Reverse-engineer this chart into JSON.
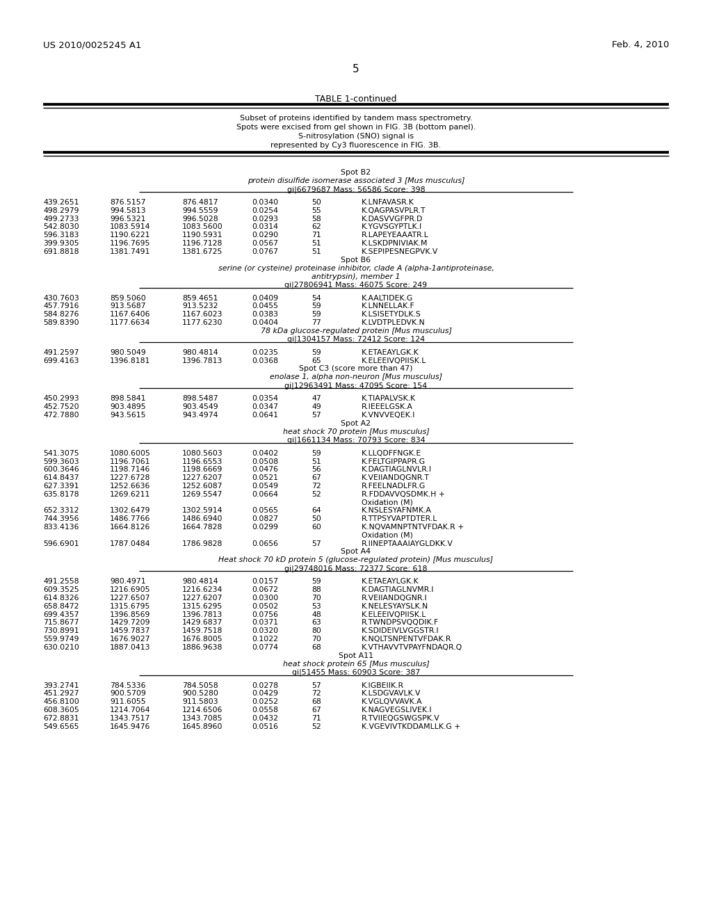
{
  "header_left": "US 2010/0025245 A1",
  "header_right": "Feb. 4, 2010",
  "page_number": "5",
  "table_title": "TABLE 1-continued",
  "description_lines": [
    "Subset of proteins identified by tandem mass spectrometry.",
    "Spots were excised from gel shown in FIG. 3B (bottom panel).",
    "S-nitrosylation (SNO) signal is",
    "represented by Cy3 fluorescence in FIG. 3B."
  ],
  "content": [
    {
      "type": "blank"
    },
    {
      "type": "spot_header",
      "text": "Spot B2"
    },
    {
      "type": "protein_name",
      "text": "protein disulfide isomerase associated 3 [Mus musculus]"
    },
    {
      "type": "gi_line",
      "text": "gi|6679687 Mass: 56586 Score: 398"
    },
    {
      "type": "blank_small"
    },
    {
      "type": "data_row",
      "cols": [
        "439.2651",
        "876.5157",
        "876.4817",
        "0.0340",
        "50",
        "K.LNFAVASR.K"
      ]
    },
    {
      "type": "data_row",
      "cols": [
        "498.2979",
        "994.5813",
        "994.5559",
        "0.0254",
        "55",
        "K.QAGPASVPLR.T"
      ]
    },
    {
      "type": "data_row",
      "cols": [
        "499.2733",
        "996.5321",
        "996.5028",
        "0.0293",
        "58",
        "K.DASVVGFPR.D"
      ]
    },
    {
      "type": "data_row",
      "cols": [
        "542.8030",
        "1083.5914",
        "1083.5600",
        "0.0314",
        "62",
        "K.YGVSGYPTLK.I"
      ]
    },
    {
      "type": "data_row",
      "cols": [
        "596.3183",
        "1190.6221",
        "1190.5931",
        "0.0290",
        "71",
        "R.LAPEYEAAATR.L"
      ]
    },
    {
      "type": "data_row",
      "cols": [
        "399.9305",
        "1196.7695",
        "1196.7128",
        "0.0567",
        "51",
        "K.LSKDPNIVIAK.M"
      ]
    },
    {
      "type": "data_row",
      "cols": [
        "691.8818",
        "1381.7491",
        "1381.6725",
        "0.0767",
        "51",
        "K.SEPIPESNEGPVK.V"
      ]
    },
    {
      "type": "spot_header",
      "text": "Spot B6"
    },
    {
      "type": "protein_name",
      "text": "serine (or cysteine) proteinase inhibitor, clade A (alpha-1antiproteinase,"
    },
    {
      "type": "protein_name",
      "text": "antitrypsin), member 1"
    },
    {
      "type": "gi_line",
      "text": "gi|27806941 Mass: 46075 Score: 249"
    },
    {
      "type": "blank_small"
    },
    {
      "type": "data_row",
      "cols": [
        "430.7603",
        "859.5060",
        "859.4651",
        "0.0409",
        "54",
        "K.AALTIDEK.G"
      ]
    },
    {
      "type": "data_row",
      "cols": [
        "457.7916",
        "913.5687",
        "913.5232",
        "0.0455",
        "59",
        "K.LNNELLAK.F"
      ]
    },
    {
      "type": "data_row",
      "cols": [
        "584.8276",
        "1167.6406",
        "1167.6023",
        "0.0383",
        "59",
        "K.LSISETYDLK.S"
      ]
    },
    {
      "type": "data_row",
      "cols": [
        "589.8390",
        "1177.6634",
        "1177.6230",
        "0.0404",
        "77",
        "K.LVDTPLEDVK.N"
      ]
    },
    {
      "type": "protein_name",
      "text": "78 kDa glucose-regulated protein [Mus musculus]"
    },
    {
      "type": "gi_line",
      "text": "gi|1304157 Mass: 72412 Score: 124"
    },
    {
      "type": "blank_small"
    },
    {
      "type": "data_row",
      "cols": [
        "491.2597",
        "980.5049",
        "980.4814",
        "0.0235",
        "59",
        "K.ETAEAYLGK.K"
      ]
    },
    {
      "type": "data_row",
      "cols": [
        "699.4163",
        "1396.8181",
        "1396.7813",
        "0.0368",
        "65",
        "K.ELEEIVQPIISK.L"
      ]
    },
    {
      "type": "spot_header",
      "text": "Spot C3 (score more than 47)"
    },
    {
      "type": "protein_name",
      "text": "enolase 1, alpha non-neuron [Mus musculus]"
    },
    {
      "type": "gi_line",
      "text": "gi|12963491 Mass: 47095 Score: 154"
    },
    {
      "type": "blank_small"
    },
    {
      "type": "data_row",
      "cols": [
        "450.2993",
        "898.5841",
        "898.5487",
        "0.0354",
        "47",
        "K.TIAPALVSK.K"
      ]
    },
    {
      "type": "data_row",
      "cols": [
        "452.7520",
        "903.4895",
        "903.4549",
        "0.0347",
        "49",
        "R.IEEELGSK.A"
      ]
    },
    {
      "type": "data_row",
      "cols": [
        "472.7880",
        "943.5615",
        "943.4974",
        "0.0641",
        "57",
        "K.VNVVEQEK.I"
      ]
    },
    {
      "type": "spot_header",
      "text": "Spot A2"
    },
    {
      "type": "protein_name",
      "text": "heat shock 70 protein [Mus musculus]"
    },
    {
      "type": "gi_line",
      "text": "gi|1661134 Mass: 70793 Score: 834"
    },
    {
      "type": "blank_small"
    },
    {
      "type": "data_row",
      "cols": [
        "541.3075",
        "1080.6005",
        "1080.5603",
        "0.0402",
        "59",
        "K.LLQDFFNGK.E"
      ]
    },
    {
      "type": "data_row",
      "cols": [
        "599.3603",
        "1196.7061",
        "1196.6553",
        "0.0508",
        "51",
        "K.FELTGIPPAPR.G"
      ]
    },
    {
      "type": "data_row",
      "cols": [
        "600.3646",
        "1198.7146",
        "1198.6669",
        "0.0476",
        "56",
        "K.DAGTIAGLNVLR.I"
      ]
    },
    {
      "type": "data_row",
      "cols": [
        "614.8437",
        "1227.6728",
        "1227.6207",
        "0.0521",
        "67",
        "K.VEIIANDQGNR.T"
      ]
    },
    {
      "type": "data_row",
      "cols": [
        "627.3391",
        "1252.6636",
        "1252.6087",
        "0.0549",
        "72",
        "R.FEELNADLFR.G"
      ]
    },
    {
      "type": "data_row",
      "cols": [
        "635.8178",
        "1269.6211",
        "1269.5547",
        "0.0664",
        "52",
        "R.FDDAVVQSDMK.H +"
      ]
    },
    {
      "type": "data_row_cont",
      "text": "Oxidation (M)"
    },
    {
      "type": "data_row",
      "cols": [
        "652.3312",
        "1302.6479",
        "1302.5914",
        "0.0565",
        "64",
        "K.NSLESYAFNMK.A"
      ]
    },
    {
      "type": "data_row",
      "cols": [
        "744.3956",
        "1486.7766",
        "1486.6940",
        "0.0827",
        "50",
        "R.TTPSYVAPTDTER.L"
      ]
    },
    {
      "type": "data_row",
      "cols": [
        "833.4136",
        "1664.8126",
        "1664.7828",
        "0.0299",
        "60",
        "K.NQVAMNPTNTVFDAK.R +"
      ]
    },
    {
      "type": "data_row_cont",
      "text": "Oxidation (M)"
    },
    {
      "type": "data_row",
      "cols": [
        "596.6901",
        "1787.0484",
        "1786.9828",
        "0.0656",
        "57",
        "R.IINEPTAAAIAYGLDKK.V"
      ]
    },
    {
      "type": "spot_header",
      "text": "Spot A4"
    },
    {
      "type": "protein_name",
      "text": "Heat shock 70 kD protein 5 (glucose-regulated protein) [Mus musculus]"
    },
    {
      "type": "gi_line",
      "text": "gi|29748016 Mass: 72377 Score: 618"
    },
    {
      "type": "blank_small"
    },
    {
      "type": "data_row",
      "cols": [
        "491.2558",
        "980.4971",
        "980.4814",
        "0.0157",
        "59",
        "K.ETAEAYLGK.K"
      ]
    },
    {
      "type": "data_row",
      "cols": [
        "609.3525",
        "1216.6905",
        "1216.6234",
        "0.0672",
        "88",
        "K.DAGTIAGLNVMR.I"
      ]
    },
    {
      "type": "data_row",
      "cols": [
        "614.8326",
        "1227.6507",
        "1227.6207",
        "0.0300",
        "70",
        "R.VEIIANDQGNR.I"
      ]
    },
    {
      "type": "data_row",
      "cols": [
        "658.8472",
        "1315.6795",
        "1315.6295",
        "0.0502",
        "53",
        "K.NELESYAYSLK.N"
      ]
    },
    {
      "type": "data_row",
      "cols": [
        "699.4357",
        "1396.8569",
        "1396.7813",
        "0.0756",
        "48",
        "K.ELEEIVQPIISK.L"
      ]
    },
    {
      "type": "data_row",
      "cols": [
        "715.8677",
        "1429.7209",
        "1429.6837",
        "0.0371",
        "63",
        "R.TWNDPSVQQDIK.F"
      ]
    },
    {
      "type": "data_row",
      "cols": [
        "730.8991",
        "1459.7837",
        "1459.7518",
        "0.0320",
        "80",
        "K.SDIDEIVLVGGSTR.I"
      ]
    },
    {
      "type": "data_row",
      "cols": [
        "559.9749",
        "1676.9027",
        "1676.8005",
        "0.1022",
        "70",
        "K.NQLTSNPENTVFDAK.R"
      ]
    },
    {
      "type": "data_row",
      "cols": [
        "630.0210",
        "1887.0413",
        "1886.9638",
        "0.0774",
        "68",
        "K.VTHAVVTVPAYFNDAQR.Q"
      ]
    },
    {
      "type": "spot_header",
      "text": "Spot A11"
    },
    {
      "type": "protein_name",
      "text": "heat shock protein 65 [Mus musculus]"
    },
    {
      "type": "gi_line",
      "text": "gi|51455 Mass: 60903 Score: 387"
    },
    {
      "type": "blank_small"
    },
    {
      "type": "data_row",
      "cols": [
        "393.2741",
        "784.5336",
        "784.5058",
        "0.0278",
        "57",
        "K.IGBEIIK.R"
      ]
    },
    {
      "type": "data_row",
      "cols": [
        "451.2927",
        "900.5709",
        "900.5280",
        "0.0429",
        "72",
        "K.LSDGVAVLK.V"
      ]
    },
    {
      "type": "data_row",
      "cols": [
        "456.8100",
        "911.6055",
        "911.5803",
        "0.0252",
        "68",
        "K.VGLQVVAVK.A"
      ]
    },
    {
      "type": "data_row",
      "cols": [
        "608.3605",
        "1214.7064",
        "1214.6506",
        "0.0558",
        "67",
        "K.NAGVEGSLIVEK.I"
      ]
    },
    {
      "type": "data_row",
      "cols": [
        "672.8831",
        "1343.7517",
        "1343.7085",
        "0.0432",
        "71",
        "R.TVIIEQGSWGSPK.V"
      ]
    },
    {
      "type": "data_row",
      "cols": [
        "549.6565",
        "1645.9476",
        "1645.8960",
        "0.0516",
        "52",
        "K.VGEVIVTKDDAMLLK.G +"
      ]
    }
  ],
  "bg_color": "#ffffff",
  "text_color": "#000000"
}
